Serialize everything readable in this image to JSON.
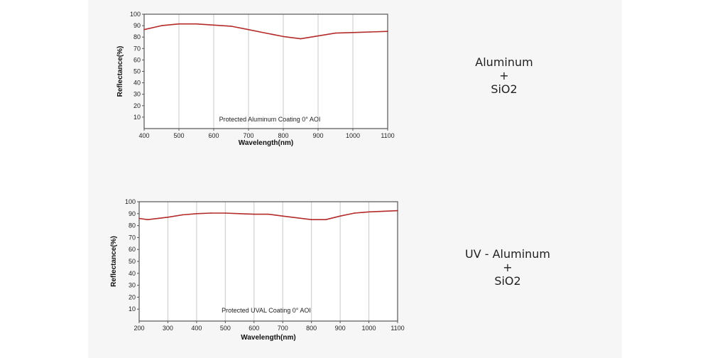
{
  "chart_data": [
    {
      "type": "line",
      "annotation": "Protected Aluminum Coating  0°  AOI",
      "xlabel": "Wavelength(nm)",
      "ylabel": "Reflectance(%)",
      "xlim": [
        400,
        1100
      ],
      "ylim": [
        0,
        100
      ],
      "x_ticks": [
        400,
        500,
        600,
        700,
        800,
        900,
        1000,
        1100
      ],
      "y_ticks": [
        10,
        20,
        30,
        40,
        50,
        60,
        70,
        80,
        90,
        100
      ],
      "grid": "vertical",
      "line_color": "#b52a2a",
      "series": [
        {
          "x": [
            400,
            450,
            500,
            550,
            600,
            650,
            700,
            750,
            800,
            850,
            900,
            950,
            1000,
            1050,
            1100
          ],
          "values": [
            86.5,
            90,
            91.5,
            91.5,
            90.5,
            89.5,
            86.5,
            83.5,
            80.5,
            78.5,
            81,
            83.5,
            84,
            84.5,
            85
          ]
        }
      ]
    },
    {
      "type": "line",
      "annotation": "Protected UVAL Coating  0°  AOI",
      "xlabel": "Wavelength(nm)",
      "ylabel": "Reflectance(%)",
      "xlim": [
        200,
        1100
      ],
      "ylim": [
        0,
        100
      ],
      "x_ticks": [
        200,
        300,
        400,
        500,
        600,
        700,
        800,
        900,
        1000,
        1100
      ],
      "y_ticks": [
        10,
        20,
        30,
        40,
        50,
        60,
        70,
        80,
        90,
        100
      ],
      "grid": "vertical",
      "line_color": "#b52a2a",
      "series": [
        {
          "x": [
            200,
            230,
            300,
            350,
            400,
            450,
            500,
            550,
            600,
            650,
            700,
            750,
            800,
            850,
            900,
            950,
            1000,
            1050,
            1100
          ],
          "values": [
            86,
            85,
            87,
            89,
            90,
            90.5,
            90.5,
            90,
            89.5,
            89.5,
            88,
            86.5,
            85,
            85,
            88,
            90.5,
            91.5,
            92,
            92.5
          ]
        }
      ]
    }
  ],
  "materials": [
    {
      "lines": [
        "Aluminum",
        "+",
        "SiO2"
      ]
    },
    {
      "lines": [
        "UV - Aluminum",
        "+",
        "SiO2"
      ]
    }
  ]
}
